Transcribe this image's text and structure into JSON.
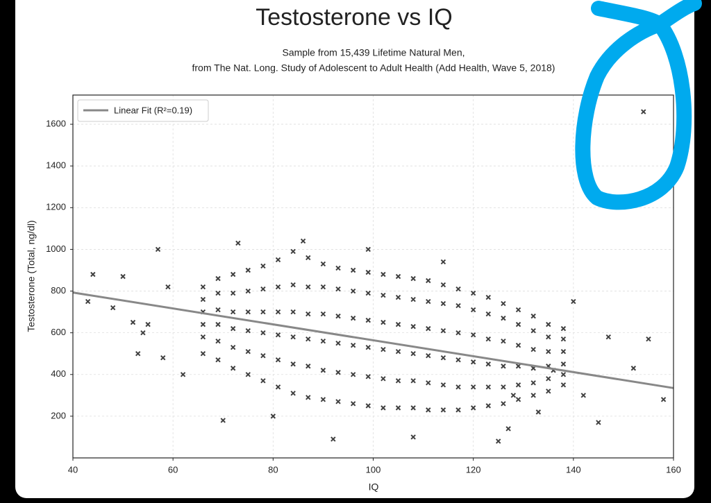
{
  "chart_data": {
    "type": "scatter",
    "title": "Testosterone vs IQ",
    "subtitle": [
      "Sample from 15,439 Lifetime Natural Men,",
      "from The Nat. Long. Study of Adolescent to Adult Health (Add Health, Wave 5, 2018)"
    ],
    "x_label": "IQ",
    "y_label": "Testosterone (Total, ng/dl)",
    "xlim": [
      40,
      160
    ],
    "ylim": [
      0,
      1740
    ],
    "xticks": [
      40,
      60,
      80,
      100,
      120,
      140,
      160
    ],
    "yticks": [
      200,
      400,
      600,
      800,
      1000,
      1200,
      1400,
      1600
    ],
    "grid": true,
    "legend": "upper left",
    "points": {
      "color": "#000000",
      "x": [
        66,
        66,
        66,
        66,
        66,
        66,
        69,
        69,
        69,
        69,
        69,
        69,
        72,
        72,
        72,
        72,
        72,
        72,
        75,
        75,
        75,
        75,
        75,
        75,
        78,
        78,
        78,
        78,
        78,
        78,
        81,
        81,
        81,
        81,
        81,
        81,
        84,
        84,
        84,
        84,
        84,
        84,
        87,
        87,
        87,
        87,
        87,
        87,
        90,
        90,
        90,
        90,
        90,
        90,
        93,
        93,
        93,
        93,
        93,
        93,
        96,
        96,
        96,
        96,
        96,
        96,
        99,
        99,
        99,
        99,
        99,
        99,
        102,
        102,
        102,
        102,
        102,
        102,
        105,
        105,
        105,
        105,
        105,
        105,
        108,
        108,
        108,
        108,
        108,
        108,
        111,
        111,
        111,
        111,
        111,
        111,
        114,
        114,
        114,
        114,
        114,
        114,
        117,
        117,
        117,
        117,
        117,
        117,
        120,
        120,
        120,
        120,
        120,
        120,
        123,
        123,
        123,
        123,
        123,
        123,
        126,
        126,
        126,
        126,
        126,
        126,
        129,
        129,
        129,
        129,
        129,
        129,
        132,
        132,
        132,
        132,
        132,
        132,
        135,
        135,
        135,
        135,
        135,
        135,
        138,
        138,
        138,
        138,
        138,
        138,
        44,
        43,
        48,
        50,
        52,
        53,
        54,
        55,
        57,
        58,
        59,
        62,
        70,
        73,
        80,
        86,
        92,
        99,
        108,
        114,
        125,
        127,
        133,
        140,
        145,
        147,
        152,
        155,
        158,
        154,
        136,
        142,
        128
      ],
      "y": [
        500,
        580,
        640,
        700,
        760,
        820,
        470,
        560,
        640,
        710,
        790,
        860,
        430,
        530,
        620,
        700,
        790,
        880,
        400,
        510,
        610,
        700,
        800,
        900,
        370,
        490,
        600,
        700,
        810,
        920,
        340,
        470,
        590,
        700,
        820,
        950,
        310,
        450,
        580,
        700,
        830,
        990,
        290,
        440,
        570,
        690,
        820,
        960,
        280,
        420,
        560,
        690,
        820,
        930,
        270,
        410,
        550,
        680,
        810,
        910,
        260,
        400,
        540,
        670,
        800,
        900,
        250,
        390,
        530,
        660,
        790,
        890,
        240,
        380,
        520,
        650,
        780,
        880,
        240,
        370,
        510,
        640,
        770,
        870,
        240,
        370,
        500,
        630,
        760,
        860,
        230,
        360,
        490,
        620,
        750,
        850,
        230,
        350,
        480,
        610,
        740,
        830,
        230,
        340,
        470,
        600,
        730,
        810,
        240,
        340,
        460,
        590,
        710,
        790,
        250,
        340,
        450,
        570,
        690,
        770,
        260,
        340,
        440,
        560,
        670,
        740,
        280,
        350,
        440,
        540,
        640,
        710,
        300,
        360,
        430,
        520,
        610,
        680,
        320,
        380,
        440,
        510,
        580,
        640,
        350,
        400,
        450,
        510,
        570,
        620,
        880,
        750,
        720,
        870,
        650,
        500,
        600,
        640,
        1000,
        480,
        820,
        400,
        180,
        1030,
        200,
        1040,
        90,
        1000,
        100,
        940,
        80,
        140,
        220,
        750,
        170,
        580,
        430,
        570,
        280,
        1660,
        420,
        300,
        300
      ]
    },
    "fit": {
      "name": "Linear Fit (R²=0.19)",
      "color": "#888888",
      "x": [
        40,
        160
      ],
      "y": [
        793,
        335
      ]
    }
  }
}
